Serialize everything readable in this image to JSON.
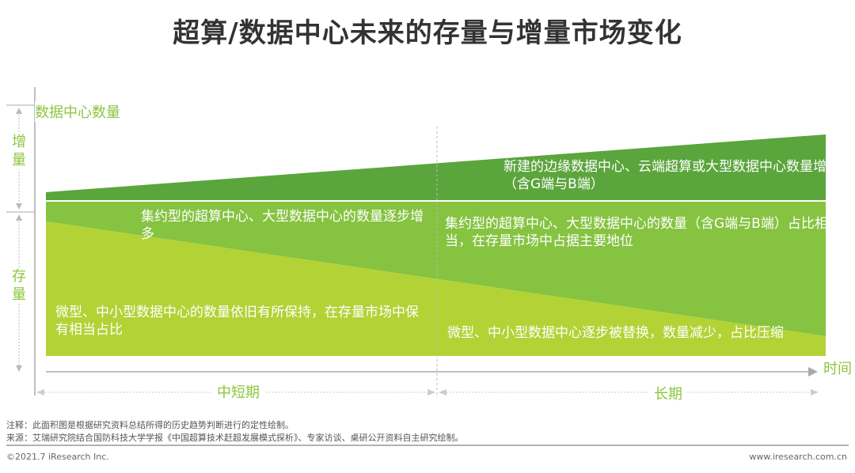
{
  "title": "超算/数据中心未来的存量与增量市场变化",
  "axes": {
    "y_label": "数据中心数量",
    "x_label": "时间"
  },
  "side_labels": {
    "increment": "增量",
    "stock": "存量"
  },
  "periods": {
    "short_mid": "中短期",
    "long": "长期"
  },
  "regions": {
    "increment_long": "新建的边缘数据中心、云端超算或大型数据中心数量增多（含G端与B端）",
    "large_short": "集约型的超算中心、大型数据中心的数量逐步增多",
    "large_long": "集约型的超算中心、大型数据中心的数量（含G端与B端）占比相当，在存量市场中占据主要地位",
    "small_short": "微型、中小型数据中心的数量依旧有所保持，在存量市场中保有相当占比",
    "small_long": "微型、中小型数据中心逐步被替换，数量减少，占比压缩"
  },
  "colors": {
    "increment": "#5ba53d",
    "large": "#85c341",
    "small": "#b3d236",
    "accent_text": "#8cc63f"
  },
  "notes": {
    "note": "注释：此面积图是根据研究资料总结所得的历史趋势判断进行的定性绘制。",
    "source": "来源：艾瑞研究院结合国防科技大学学报《中国超算技术赶超发展模式探析》、专家访谈、桌研公开资料自主研究绘制。"
  },
  "footer": {
    "copyright": "©2021.7 iResearch Inc.",
    "website": "www.iresearch.com.cn"
  }
}
